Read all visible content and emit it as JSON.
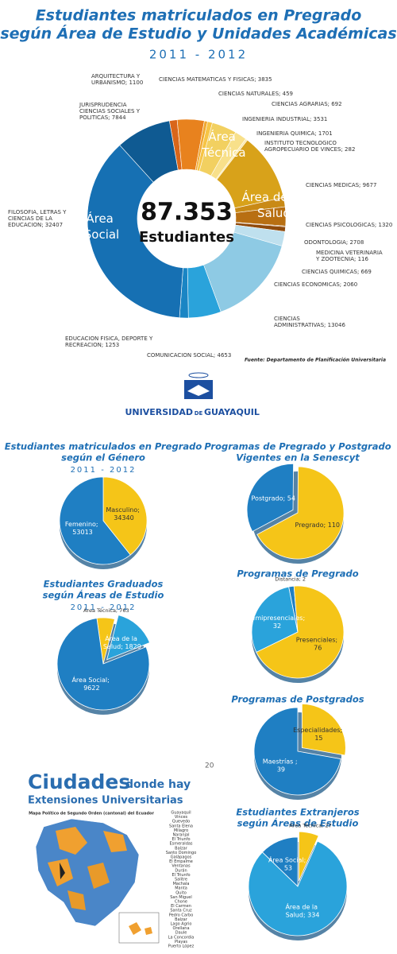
{
  "header": {
    "title_line1": "Estudiantes matriculados en Pregrado",
    "title_line2": "según Área de Estudio y Unidades Académicas",
    "years": "2011 - 2012",
    "source": "Fuente: Departamento de Planificación Universitaria"
  },
  "chart_data": [
    {
      "type": "donut",
      "total_label": "87.353",
      "total_caption": "Estudiantes",
      "groups": [
        "Área Técnica",
        "Área de la Salud",
        "Área Social"
      ],
      "labels": [
        "ARQUITECTURA Y URBANISMO; 1100",
        "CIENCIAS MATEMATICAS Y FISICAS; 3835",
        "CIENCIAS NATURALES; 459",
        "CIENCIAS AGRARIAS; 692",
        "INGENIERIA INDUSTRIAL; 3531",
        "INGENIERIA QUIMICA; 1701",
        "INSTITUTO TECNOLOGICO AGROPECUARIO DE VINCES; 282",
        "CIENCIAS MEDICAS; 9677",
        "CIENCIAS PSICOLOGICAS; 1320",
        "ODONTOLOGIA; 2708",
        "MEDICINA VETERINARIA Y ZOOTECNIA; 116",
        "CIENCIAS QUIMICAS; 669",
        "CIENCIAS ECONOMICAS; 2060",
        "CIENCIAS ADMINISTRATIVAS; 13046",
        "COMUNICACION SOCIAL; 4653",
        "EDUCACION FISICA, DEPORTE Y RECREACION; 1253",
        "FILOSOFIA, LETRAS Y CIENCIAS DE LA EDUCACION; 32407",
        "JURISPRUDENCIA CIENCIAS SOCIALES Y POLITICAS; 7844"
      ],
      "values": [
        1100,
        3835,
        459,
        692,
        3531,
        1701,
        282,
        9677,
        1320,
        2708,
        116,
        669,
        2060,
        13046,
        4653,
        1253,
        32407,
        7844
      ],
      "colors": [
        "#d9661a",
        "#e8821e",
        "#f0a830",
        "#f6c445",
        "#f2d060",
        "#f8e08a",
        "#fbe9a8",
        "#d8a21a",
        "#c98a16",
        "#b86f12",
        "#a65a10",
        "#8f4a0c",
        "#bfe0ee",
        "#8ecae4",
        "#2aa3db",
        "#1a85c4",
        "#1670b3",
        "#0f5a92"
      ]
    },
    {
      "type": "pie",
      "title": "Estudiantes matriculados en Pregrado",
      "subtitle": "según el Género",
      "years": "2011 - 2012",
      "labels": [
        "Masculino; 34340",
        "Femenino; 53013"
      ],
      "values": [
        34340,
        53013
      ],
      "colors": [
        "#f5c518",
        "#1f7fc3"
      ]
    },
    {
      "type": "pie",
      "title": "Programas de Pregrado y Postgrado",
      "subtitle": "Vigentes en la Senescyt",
      "labels": [
        "Postgrado; 54",
        "Pregrado; 110"
      ],
      "values": [
        54,
        110
      ],
      "colors": [
        "#1f7fc3",
        "#f5c518"
      ]
    },
    {
      "type": "pie",
      "title": "Estudiantes Graduados",
      "subtitle": "según Áreas de Estudio",
      "years": "2011 - 2012",
      "labels": [
        "Área Técnica; 763",
        "Área de la Salud; 1829",
        "Área Social; 9622"
      ],
      "values": [
        763,
        1829,
        9622
      ],
      "colors": [
        "#f5c518",
        "#2aa3db",
        "#1f7fc3"
      ]
    },
    {
      "type": "pie",
      "title": "Programas de Pregrado",
      "labels": [
        "Semipresenciales; 32",
        "Distancia; 2",
        "Presenciales; 76"
      ],
      "values": [
        32,
        2,
        76
      ],
      "colors": [
        "#2aa3db",
        "#1f7fc3",
        "#f5c518"
      ]
    },
    {
      "type": "pie",
      "title": "Programas de Postgrados",
      "labels": [
        "Especialidades; 15",
        "Maestrías ; 39"
      ],
      "values": [
        15,
        39
      ],
      "colors": [
        "#f5c518",
        "#1f7fc3"
      ]
    },
    {
      "type": "pie",
      "title": "Estudiantes Extranjeros",
      "subtitle": "según Áreas de Estudio",
      "labels": [
        "Área Social; 53",
        "Área Técnica; 27",
        "Área de la Salud; 334"
      ],
      "values": [
        53,
        27,
        334
      ],
      "colors": [
        "#1f7fc3",
        "#f5c518",
        "#2aa3db"
      ]
    }
  ],
  "logo": {
    "name1": "UNIVERSIDAD",
    "name2": "DE",
    "name3": "GUAYAQUIL"
  },
  "map": {
    "title": "Ciudades",
    "title_rest": "donde hay",
    "subtitle": "Extensiones Universitarias",
    "page_number": "20",
    "map_caption": "Mapa Político de Segundo Orden (cantonal) del Ecuador",
    "cities": [
      "Guayaquil",
      "Vinces",
      "Quevedo",
      "Santa Elena",
      "Milagro",
      "Naranjal",
      "El Triunfo",
      "Esmeraldas",
      "Balzar",
      "Santo Domingo",
      "Galápagos",
      "El Empalme",
      "Ventanas",
      "Durán",
      "El Triunfo",
      "Salitre",
      "Machala",
      "Manta",
      "Quito",
      "San Miguel",
      "Chone",
      "El Carmen",
      "Santa Cruz",
      "Pedro Carbo",
      "Balzar",
      "Lago Agrio",
      "Orellana",
      "Daule",
      "La Concordia",
      "Playas",
      "Puerto López"
    ]
  }
}
